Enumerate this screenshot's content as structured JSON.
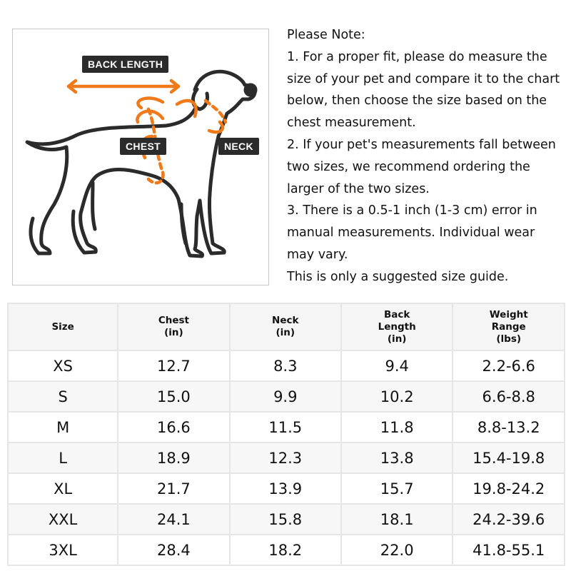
{
  "figure": {
    "labels": {
      "back_length": "BACK LENGTH",
      "chest": "CHEST",
      "neck": "NECK"
    },
    "colors": {
      "arrow": "#f07a1a",
      "outline": "#2b2b2b"
    }
  },
  "note": {
    "lines": [
      "Please Note:",
      "1. For a proper fit, please do measure the",
      "size of your pet and compare it to the chart",
      "below, then choose the size based on the",
      "chest measurement.",
      "2. If your pet's measurements fall between",
      "two sizes, we recommend ordering the",
      "larger of the two sizes.",
      "3. There is a 0.5-1 inch (1-3 cm) error in",
      "manual measurements. Individual wear",
      "may vary.",
      "This is only a suggested size guide."
    ]
  },
  "table": {
    "headers": [
      [
        "Size"
      ],
      [
        "Chest",
        "(in)"
      ],
      [
        "Neck",
        "(in)"
      ],
      [
        "Back",
        "Length",
        "(in)"
      ],
      [
        "Weight",
        "Range",
        "(lbs)"
      ]
    ],
    "rows": [
      [
        "XS",
        "12.7",
        "8.3",
        "9.4",
        "2.2-6.6"
      ],
      [
        "S",
        "15.0",
        "9.9",
        "10.2",
        "6.6-8.8"
      ],
      [
        "M",
        "16.6",
        "11.5",
        "11.8",
        "8.8-13.2"
      ],
      [
        "L",
        "18.9",
        "12.3",
        "13.8",
        "15.4-19.8"
      ],
      [
        "XL",
        "21.7",
        "13.9",
        "15.7",
        "19.8-24.2"
      ],
      [
        "XXL",
        "24.1",
        "15.8",
        "18.1",
        "24.2-39.6"
      ],
      [
        "3XL",
        "28.4",
        "18.2",
        "22.0",
        "41.8-55.1"
      ]
    ]
  }
}
